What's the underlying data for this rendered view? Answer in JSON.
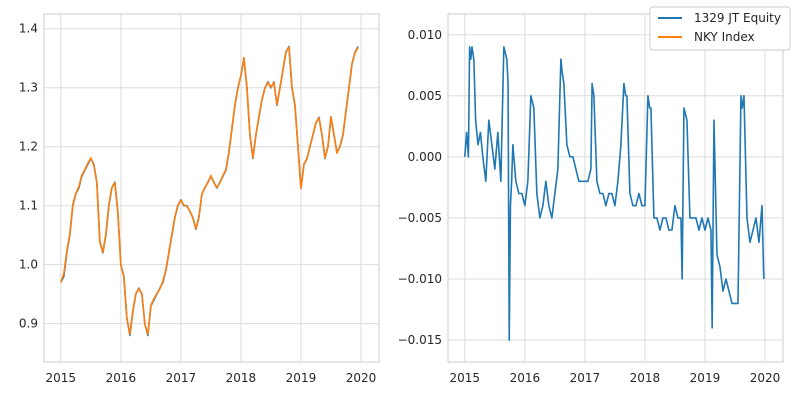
{
  "chart_data": [
    {
      "type": "line",
      "x_ticks": [
        2015,
        2016,
        2017,
        2018,
        2019,
        2020
      ],
      "x_tick_labels": [
        "2015",
        "2016",
        "2017",
        "2018",
        "2019",
        "2020"
      ],
      "y_ticks": [
        0.9,
        1.0,
        1.1,
        1.2,
        1.3,
        1.4
      ],
      "y_tick_labels": [
        "0.9",
        "1.0",
        "1.1",
        "1.2",
        "1.3",
        "1.4"
      ],
      "xlim": [
        2014.72,
        2020.3
      ],
      "ylim": [
        0.835,
        1.425
      ],
      "grid": true,
      "series": [
        {
          "name": "1329 JT Equity",
          "color": "#1f77b4",
          "x": [
            2015.0,
            2015.05,
            2015.1,
            2015.15,
            2015.2,
            2015.25,
            2015.3,
            2015.35,
            2015.4,
            2015.45,
            2015.5,
            2015.55,
            2015.6,
            2015.65,
            2015.7,
            2015.75,
            2015.8,
            2015.85,
            2015.9,
            2015.95,
            2016.0,
            2016.05,
            2016.1,
            2016.15,
            2016.2,
            2016.25,
            2016.3,
            2016.35,
            2016.4,
            2016.45,
            2016.5,
            2016.55,
            2016.6,
            2016.65,
            2016.7,
            2016.75,
            2016.8,
            2016.85,
            2016.9,
            2016.95,
            2017.0,
            2017.05,
            2017.1,
            2017.15,
            2017.2,
            2017.25,
            2017.3,
            2017.35,
            2017.4,
            2017.45,
            2017.5,
            2017.55,
            2017.6,
            2017.65,
            2017.7,
            2017.75,
            2017.8,
            2017.85,
            2017.9,
            2017.95,
            2018.0,
            2018.05,
            2018.1,
            2018.15,
            2018.2,
            2018.25,
            2018.3,
            2018.35,
            2018.4,
            2018.45,
            2018.5,
            2018.55,
            2018.6,
            2018.65,
            2018.7,
            2018.75,
            2018.8,
            2018.85,
            2018.9,
            2018.95,
            2019.0,
            2019.05,
            2019.1,
            2019.15,
            2019.2,
            2019.25,
            2019.3,
            2019.35,
            2019.4,
            2019.45,
            2019.5,
            2019.55,
            2019.6,
            2019.65,
            2019.7,
            2019.75,
            2019.8,
            2019.85,
            2019.9,
            2019.95
          ],
          "values": [
            0.97,
            0.98,
            1.02,
            1.05,
            1.1,
            1.12,
            1.13,
            1.15,
            1.16,
            1.17,
            1.18,
            1.17,
            1.14,
            1.04,
            1.02,
            1.05,
            1.1,
            1.13,
            1.14,
            1.09,
            1.0,
            0.98,
            0.91,
            0.88,
            0.92,
            0.95,
            0.96,
            0.95,
            0.9,
            0.88,
            0.93,
            0.94,
            0.95,
            0.96,
            0.97,
            0.99,
            1.02,
            1.05,
            1.08,
            1.1,
            1.11,
            1.1,
            1.1,
            1.09,
            1.08,
            1.06,
            1.08,
            1.12,
            1.13,
            1.14,
            1.15,
            1.14,
            1.13,
            1.14,
            1.15,
            1.16,
            1.19,
            1.23,
            1.27,
            1.3,
            1.32,
            1.35,
            1.3,
            1.22,
            1.18,
            1.22,
            1.25,
            1.28,
            1.3,
            1.31,
            1.3,
            1.31,
            1.27,
            1.3,
            1.33,
            1.36,
            1.37,
            1.3,
            1.27,
            1.2,
            1.13,
            1.17,
            1.18,
            1.2,
            1.22,
            1.24,
            1.25,
            1.22,
            1.18,
            1.2,
            1.25,
            1.22,
            1.19,
            1.2,
            1.22,
            1.26,
            1.3,
            1.34,
            1.36,
            1.37
          ]
        },
        {
          "name": "NKY Index",
          "color": "#ff7f0e",
          "x": [
            2015.0,
            2015.05,
            2015.1,
            2015.15,
            2015.2,
            2015.25,
            2015.3,
            2015.35,
            2015.4,
            2015.45,
            2015.5,
            2015.55,
            2015.6,
            2015.65,
            2015.7,
            2015.75,
            2015.8,
            2015.85,
            2015.9,
            2015.95,
            2016.0,
            2016.05,
            2016.1,
            2016.15,
            2016.2,
            2016.25,
            2016.3,
            2016.35,
            2016.4,
            2016.45,
            2016.5,
            2016.55,
            2016.6,
            2016.65,
            2016.7,
            2016.75,
            2016.8,
            2016.85,
            2016.9,
            2016.95,
            2017.0,
            2017.05,
            2017.1,
            2017.15,
            2017.2,
            2017.25,
            2017.3,
            2017.35,
            2017.4,
            2017.45,
            2017.5,
            2017.55,
            2017.6,
            2017.65,
            2017.7,
            2017.75,
            2017.8,
            2017.85,
            2017.9,
            2017.95,
            2018.0,
            2018.05,
            2018.1,
            2018.15,
            2018.2,
            2018.25,
            2018.3,
            2018.35,
            2018.4,
            2018.45,
            2018.5,
            2018.55,
            2018.6,
            2018.65,
            2018.7,
            2018.75,
            2018.8,
            2018.85,
            2018.9,
            2018.95,
            2019.0,
            2019.05,
            2019.1,
            2019.15,
            2019.2,
            2019.25,
            2019.3,
            2019.35,
            2019.4,
            2019.45,
            2019.5,
            2019.55,
            2019.6,
            2019.65,
            2019.7,
            2019.75,
            2019.8,
            2019.85,
            2019.9,
            2019.95
          ],
          "values": [
            0.97,
            0.985,
            1.022,
            1.052,
            1.102,
            1.121,
            1.132,
            1.152,
            1.161,
            1.172,
            1.181,
            1.169,
            1.139,
            1.039,
            1.021,
            1.052,
            1.101,
            1.131,
            1.139,
            1.088,
            0.999,
            0.979,
            0.909,
            0.882,
            0.922,
            0.951,
            0.959,
            0.951,
            0.899,
            0.882,
            0.931,
            0.942,
            0.951,
            0.959,
            0.972,
            0.991,
            1.021,
            1.052,
            1.081,
            1.101,
            1.109,
            1.101,
            1.099,
            1.091,
            1.079,
            1.061,
            1.081,
            1.119,
            1.131,
            1.139,
            1.151,
            1.139,
            1.131,
            1.139,
            1.151,
            1.161,
            1.191,
            1.231,
            1.271,
            1.299,
            1.321,
            1.351,
            1.301,
            1.221,
            1.181,
            1.221,
            1.251,
            1.279,
            1.299,
            1.309,
            1.301,
            1.309,
            1.271,
            1.299,
            1.331,
            1.361,
            1.369,
            1.301,
            1.271,
            1.201,
            1.129,
            1.171,
            1.179,
            1.201,
            1.221,
            1.241,
            1.249,
            1.221,
            1.181,
            1.201,
            1.251,
            1.221,
            1.189,
            1.201,
            1.221,
            1.261,
            1.299,
            1.341,
            1.359,
            1.368
          ]
        }
      ]
    },
    {
      "type": "line",
      "x_ticks": [
        2015,
        2016,
        2017,
        2018,
        2019,
        2020
      ],
      "x_tick_labels": [
        "2015",
        "2016",
        "2017",
        "2018",
        "2019",
        "2020"
      ],
      "y_ticks": [
        0.01,
        0.005,
        0.0,
        -0.005,
        -0.01,
        -0.015
      ],
      "y_tick_labels": [
        "0.010",
        "0.005",
        "0.000",
        "−0.005",
        "−0.010",
        "−0.015"
      ],
      "xlim": [
        2014.72,
        2020.3
      ],
      "ylim": [
        -0.0168,
        0.0117
      ],
      "grid": true,
      "legend": {
        "placement": "top-right",
        "entries": [
          {
            "name": "1329 JT Equity",
            "color": "#1f77b4"
          },
          {
            "name": "NKY Index",
            "color": "#ff7f0e"
          }
        ]
      },
      "series": [
        {
          "name": "1329 JT Equity",
          "color": "#1f77b4",
          "x": [
            2015.0,
            2015.03,
            2015.06,
            2015.08,
            2015.1,
            2015.12,
            2015.15,
            2015.18,
            2015.22,
            2015.26,
            2015.3,
            2015.35,
            2015.4,
            2015.45,
            2015.5,
            2015.55,
            2015.6,
            2015.65,
            2015.7,
            2015.72,
            2015.74,
            2015.76,
            2015.78,
            2015.8,
            2015.85,
            2015.9,
            2015.95,
            2016.0,
            2016.05,
            2016.1,
            2016.15,
            2016.2,
            2016.25,
            2016.3,
            2016.35,
            2016.4,
            2016.45,
            2016.5,
            2016.55,
            2016.6,
            2016.62,
            2016.65,
            2016.7,
            2016.75,
            2016.8,
            2016.85,
            2016.9,
            2016.95,
            2017.0,
            2017.05,
            2017.1,
            2017.12,
            2017.15,
            2017.2,
            2017.25,
            2017.3,
            2017.35,
            2017.4,
            2017.45,
            2017.5,
            2017.55,
            2017.6,
            2017.65,
            2017.68,
            2017.7,
            2017.75,
            2017.8,
            2017.85,
            2017.9,
            2017.95,
            2018.0,
            2018.05,
            2018.08,
            2018.1,
            2018.15,
            2018.2,
            2018.25,
            2018.3,
            2018.35,
            2018.4,
            2018.45,
            2018.5,
            2018.55,
            2018.6,
            2018.62,
            2018.65,
            2018.7,
            2018.75,
            2018.8,
            2018.85,
            2018.9,
            2018.95,
            2019.0,
            2019.05,
            2019.1,
            2019.12,
            2019.15,
            2019.2,
            2019.25,
            2019.3,
            2019.35,
            2019.4,
            2019.45,
            2019.5,
            2019.55,
            2019.6,
            2019.62,
            2019.65,
            2019.7,
            2019.75,
            2019.8,
            2019.85,
            2019.9,
            2019.95,
            2019.98
          ],
          "values": [
            0.0,
            0.002,
            0.0,
            0.009,
            0.008,
            0.009,
            0.008,
            0.003,
            0.001,
            0.002,
            0.0,
            -0.002,
            0.003,
            0.001,
            -0.001,
            0.002,
            -0.002,
            0.009,
            0.008,
            0.006,
            -0.015,
            -0.004,
            -0.002,
            0.001,
            -0.002,
            -0.003,
            -0.003,
            -0.004,
            -0.002,
            0.005,
            0.004,
            -0.003,
            -0.005,
            -0.004,
            -0.002,
            -0.004,
            -0.005,
            -0.003,
            -0.001,
            0.008,
            0.007,
            0.006,
            0.001,
            0.0,
            0.0,
            -0.001,
            -0.002,
            -0.002,
            -0.002,
            -0.002,
            -0.001,
            0.006,
            0.005,
            -0.002,
            -0.003,
            -0.003,
            -0.004,
            -0.003,
            -0.003,
            -0.004,
            -0.002,
            0.001,
            0.006,
            0.005,
            0.005,
            -0.003,
            -0.004,
            -0.004,
            -0.003,
            -0.004,
            -0.004,
            0.005,
            0.004,
            0.004,
            -0.005,
            -0.005,
            -0.006,
            -0.005,
            -0.005,
            -0.006,
            -0.006,
            -0.004,
            -0.005,
            -0.005,
            -0.01,
            0.004,
            0.003,
            -0.005,
            -0.005,
            -0.005,
            -0.006,
            -0.005,
            -0.006,
            -0.005,
            -0.006,
            -0.014,
            0.003,
            -0.008,
            -0.009,
            -0.011,
            -0.01,
            -0.011,
            -0.012,
            -0.012,
            -0.012,
            0.005,
            0.004,
            0.005,
            -0.005,
            -0.007,
            -0.006,
            -0.005,
            -0.007,
            -0.004,
            -0.01
          ]
        }
      ]
    }
  ]
}
